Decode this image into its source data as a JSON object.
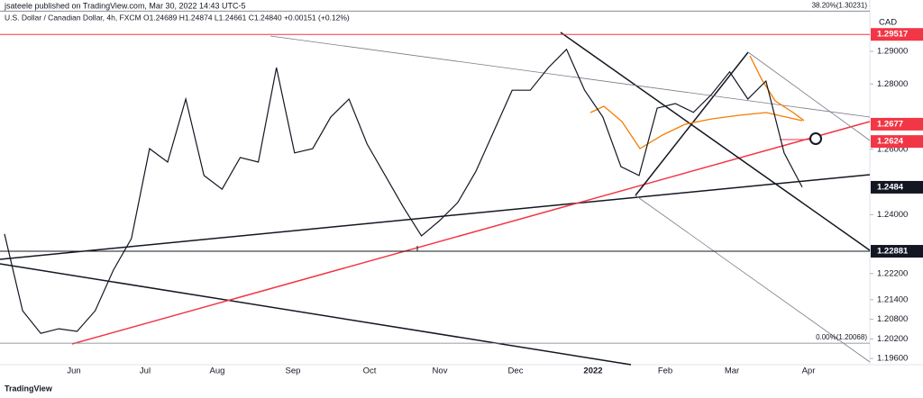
{
  "chart_data": {
    "type": "line",
    "publisher": "jsateele published on TradingView.com, Mar 30, 2022 14:43 UTC-5",
    "title": "U.S. Dollar / Canadian Dollar, 4h, FXCM O1.24689 H1.24874 L1.24661 C1.24840 +0.00151 (+0.12%)",
    "legend_label": "CAD",
    "brand": "TradingView",
    "series": [
      {
        "name": "USDCAD",
        "color": "#131722",
        "values": [
          1.2341,
          1.2106,
          1.2037,
          1.2051,
          1.2043,
          1.2106,
          1.223,
          1.2327,
          1.2602,
          1.2561,
          1.2754,
          1.252,
          1.2478,
          1.2575,
          1.2561,
          1.285,
          1.2589,
          1.2602,
          1.2699,
          1.2754,
          1.2616,
          1.252,
          1.2423,
          1.2335,
          1.2382,
          1.2437,
          1.2533,
          1.2657,
          1.2781,
          1.2781,
          1.285,
          1.2906,
          1.2781,
          1.2699,
          1.2547,
          1.252,
          1.2726,
          1.274,
          1.2713,
          1.2768,
          1.2837,
          1.2754,
          1.2809,
          1.2589,
          1.2484
        ]
      }
    ],
    "xticks": [
      "Jun",
      "Jul",
      "Aug",
      "Sep",
      "Oct",
      "Nov",
      "Dec",
      "2022",
      "Feb",
      "Mar",
      "Apr"
    ],
    "ylim": [
      1.1941,
      1.3057
    ],
    "yticks": [
      {
        "value": 1.196,
        "label": "1.19600"
      },
      {
        "value": 1.202,
        "label": "1.20200"
      },
      {
        "value": 1.208,
        "label": "1.20800"
      },
      {
        "value": 1.214,
        "label": "1.21400"
      },
      {
        "value": 1.222,
        "label": "1.22200"
      },
      {
        "value": 1.24,
        "label": "1.24000"
      },
      {
        "value": 1.26,
        "label": "1.26000"
      },
      {
        "value": 1.28,
        "label": "1.28000"
      },
      {
        "value": 1.29,
        "label": "1.29000"
      }
    ],
    "levels": [
      1.29517,
      1.2677,
      1.2624,
      1.2484,
      1.22881
    ],
    "level_colors": [
      "#f23645",
      "#f23645",
      "#f23645",
      "#131722",
      "#131722"
    ],
    "fib_levels": [
      {
        "value": 1.30231,
        "label": "38.20%(1.30231)"
      },
      {
        "value": 1.20068,
        "label": "0.00%(1.20068)"
      }
    ]
  }
}
